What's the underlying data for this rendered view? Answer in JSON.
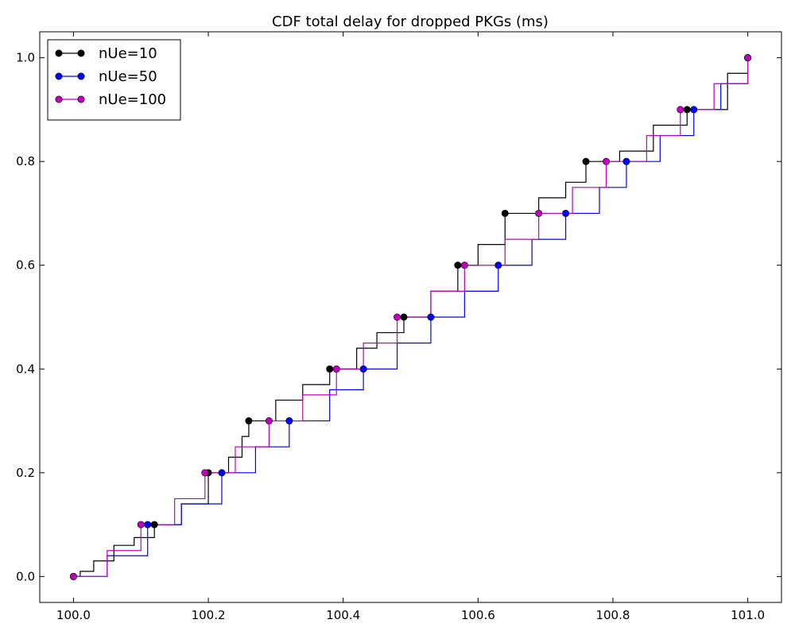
{
  "chart_data": {
    "type": "line",
    "title": "CDF total delay for dropped PKGs (ms)",
    "xlabel": "",
    "ylabel": "",
    "xlim": [
      99.95,
      101.05
    ],
    "ylim": [
      -0.05,
      1.05
    ],
    "xticks": [
      100.0,
      100.2,
      100.4,
      100.6,
      100.8,
      101.0
    ],
    "xtick_labels": [
      "100.0",
      "100.2",
      "100.4",
      "100.6",
      "100.8",
      "101.0"
    ],
    "yticks": [
      0.0,
      0.2,
      0.4,
      0.6,
      0.8,
      1.0
    ],
    "ytick_labels": [
      "0.0",
      "0.2",
      "0.4",
      "0.6",
      "0.8",
      "1.0"
    ],
    "grid": false,
    "legend_position": "top-left",
    "step": true,
    "series": [
      {
        "name": "nUe=10",
        "color": "#000000",
        "curve": [
          [
            100.0,
            0.0
          ],
          [
            100.01,
            0.01
          ],
          [
            100.03,
            0.03
          ],
          [
            100.06,
            0.06
          ],
          [
            100.09,
            0.075
          ],
          [
            100.12,
            0.1
          ],
          [
            100.16,
            0.14
          ],
          [
            100.2,
            0.2
          ],
          [
            100.23,
            0.23
          ],
          [
            100.25,
            0.27
          ],
          [
            100.26,
            0.3
          ],
          [
            100.3,
            0.34
          ],
          [
            100.34,
            0.37
          ],
          [
            100.38,
            0.4
          ],
          [
            100.42,
            0.44
          ],
          [
            100.45,
            0.47
          ],
          [
            100.49,
            0.5
          ],
          [
            100.53,
            0.55
          ],
          [
            100.57,
            0.6
          ],
          [
            100.6,
            0.64
          ],
          [
            100.64,
            0.7
          ],
          [
            100.69,
            0.73
          ],
          [
            100.73,
            0.76
          ],
          [
            100.76,
            0.8
          ],
          [
            100.81,
            0.82
          ],
          [
            100.86,
            0.87
          ],
          [
            100.91,
            0.9
          ],
          [
            100.97,
            0.97
          ],
          [
            101.0,
            1.0
          ]
        ],
        "markers": [
          [
            100.0,
            0.0
          ],
          [
            100.12,
            0.1
          ],
          [
            100.2,
            0.2
          ],
          [
            100.26,
            0.3
          ],
          [
            100.38,
            0.4
          ],
          [
            100.49,
            0.5
          ],
          [
            100.57,
            0.6
          ],
          [
            100.64,
            0.7
          ],
          [
            100.76,
            0.8
          ],
          [
            100.91,
            0.9
          ],
          [
            101.0,
            1.0
          ]
        ]
      },
      {
        "name": "nUe=50",
        "color": "#0000ff",
        "curve": [
          [
            100.0,
            0.0
          ],
          [
            100.05,
            0.04
          ],
          [
            100.11,
            0.1
          ],
          [
            100.16,
            0.14
          ],
          [
            100.22,
            0.2
          ],
          [
            100.27,
            0.25
          ],
          [
            100.32,
            0.3
          ],
          [
            100.38,
            0.36
          ],
          [
            100.43,
            0.4
          ],
          [
            100.48,
            0.45
          ],
          [
            100.53,
            0.5
          ],
          [
            100.58,
            0.55
          ],
          [
            100.63,
            0.6
          ],
          [
            100.68,
            0.65
          ],
          [
            100.73,
            0.7
          ],
          [
            100.78,
            0.75
          ],
          [
            100.82,
            0.8
          ],
          [
            100.87,
            0.85
          ],
          [
            100.92,
            0.9
          ],
          [
            100.96,
            0.95
          ],
          [
            101.0,
            1.0
          ]
        ],
        "markers": [
          [
            100.0,
            0.0
          ],
          [
            100.11,
            0.1
          ],
          [
            100.22,
            0.2
          ],
          [
            100.32,
            0.3
          ],
          [
            100.43,
            0.4
          ],
          [
            100.53,
            0.5
          ],
          [
            100.63,
            0.6
          ],
          [
            100.73,
            0.7
          ],
          [
            100.82,
            0.8
          ],
          [
            100.92,
            0.9
          ],
          [
            101.0,
            1.0
          ]
        ]
      },
      {
        "name": "nUe=100",
        "color": "#bf00bf",
        "curve": [
          [
            100.0,
            0.0
          ],
          [
            100.05,
            0.05
          ],
          [
            100.1,
            0.1
          ],
          [
            100.15,
            0.15
          ],
          [
            100.195,
            0.2
          ],
          [
            100.24,
            0.25
          ],
          [
            100.29,
            0.3
          ],
          [
            100.34,
            0.35
          ],
          [
            100.39,
            0.4
          ],
          [
            100.43,
            0.45
          ],
          [
            100.48,
            0.5
          ],
          [
            100.53,
            0.55
          ],
          [
            100.58,
            0.6
          ],
          [
            100.64,
            0.65
          ],
          [
            100.69,
            0.7
          ],
          [
            100.74,
            0.75
          ],
          [
            100.79,
            0.8
          ],
          [
            100.85,
            0.85
          ],
          [
            100.9,
            0.9
          ],
          [
            100.95,
            0.95
          ],
          [
            101.0,
            1.0
          ]
        ],
        "markers": [
          [
            100.0,
            0.0
          ],
          [
            100.1,
            0.1
          ],
          [
            100.195,
            0.2
          ],
          [
            100.29,
            0.3
          ],
          [
            100.39,
            0.4
          ],
          [
            100.48,
            0.5
          ],
          [
            100.58,
            0.6
          ],
          [
            100.69,
            0.7
          ],
          [
            100.79,
            0.8
          ],
          [
            100.9,
            0.9
          ],
          [
            101.0,
            1.0
          ]
        ]
      }
    ]
  }
}
